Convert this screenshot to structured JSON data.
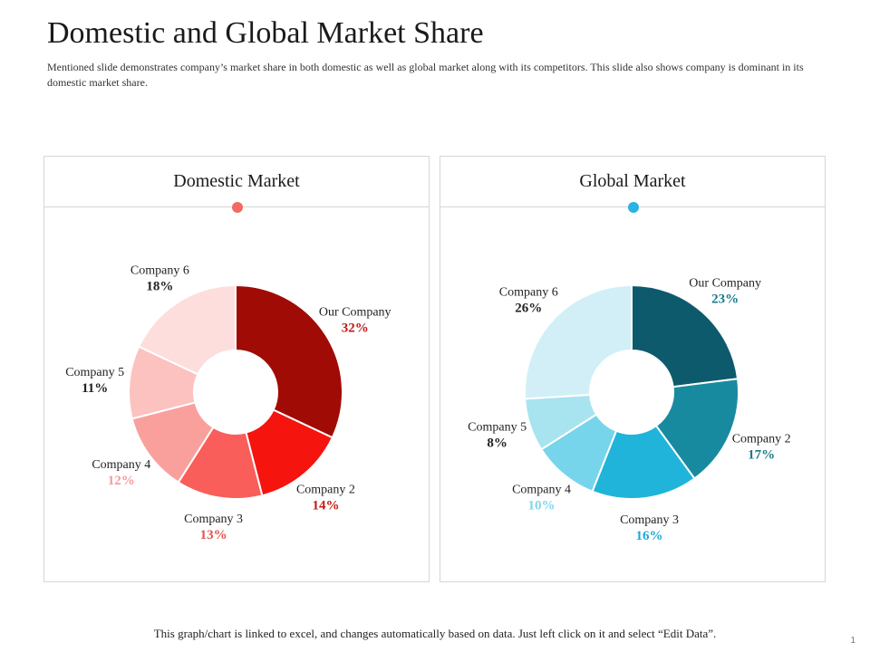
{
  "title": "Domestic and Global Market Share",
  "subtitle": "Mentioned slide demonstrates  company’s market share  in both domestic as well as global market along with its competitors.  This slide also shows company  is dominant  in its domestic market share.",
  "footer": "This graph/chart is linked to excel, and changes automatically based on data. Just left click on it and select “Edit Data”.",
  "page_number": "1",
  "colors": {
    "domestic_accent": "#F26A63",
    "global_accent": "#26B5E2"
  },
  "chart_data": [
    {
      "type": "pie",
      "donut": true,
      "title": "Domestic Market",
      "categories": [
        "Our Company",
        "Company 2",
        "Company 3",
        "Company 4",
        "Company 5",
        "Company 6"
      ],
      "values": [
        32,
        14,
        13,
        12,
        11,
        18
      ],
      "value_labels": [
        "32%",
        "14%",
        "13%",
        "12%",
        "11%",
        "18%"
      ],
      "colors": [
        "#A00B06",
        "#F5140E",
        "#F95E5A",
        "#F9A09D",
        "#FCC2C0",
        "#FDDEDD"
      ],
      "label_colors": [
        "#C11A14",
        "#C11A14",
        "#E5524E",
        "#F29C99",
        "#222222",
        "#222222"
      ]
    },
    {
      "type": "pie",
      "donut": true,
      "title": "Global Market",
      "categories": [
        "Our Company",
        "Company 2",
        "Company 3",
        "Company 4",
        "Company 5",
        "Company 6"
      ],
      "values": [
        23,
        17,
        16,
        10,
        8,
        26
      ],
      "value_labels": [
        "23%",
        "17%",
        "16%",
        "10%",
        "8%",
        "26%"
      ],
      "colors": [
        "#0E5A6D",
        "#188AA0",
        "#20B4DA",
        "#76D5EA",
        "#A8E3F0",
        "#D2EFF7"
      ],
      "label_colors": [
        "#1A7A8C",
        "#1A7A8C",
        "#1FA8D6",
        "#7FD6EA",
        "#222222",
        "#222222"
      ]
    }
  ]
}
